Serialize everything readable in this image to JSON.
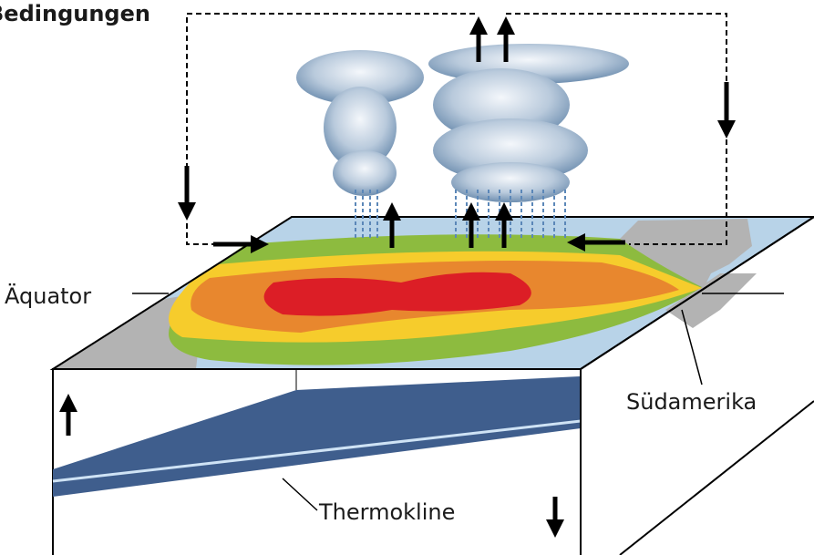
{
  "labels": {
    "title": "Bedingungen",
    "equator": "Äquator",
    "south_america": "Südamerika",
    "thermocline": "Thermokline"
  }
}
